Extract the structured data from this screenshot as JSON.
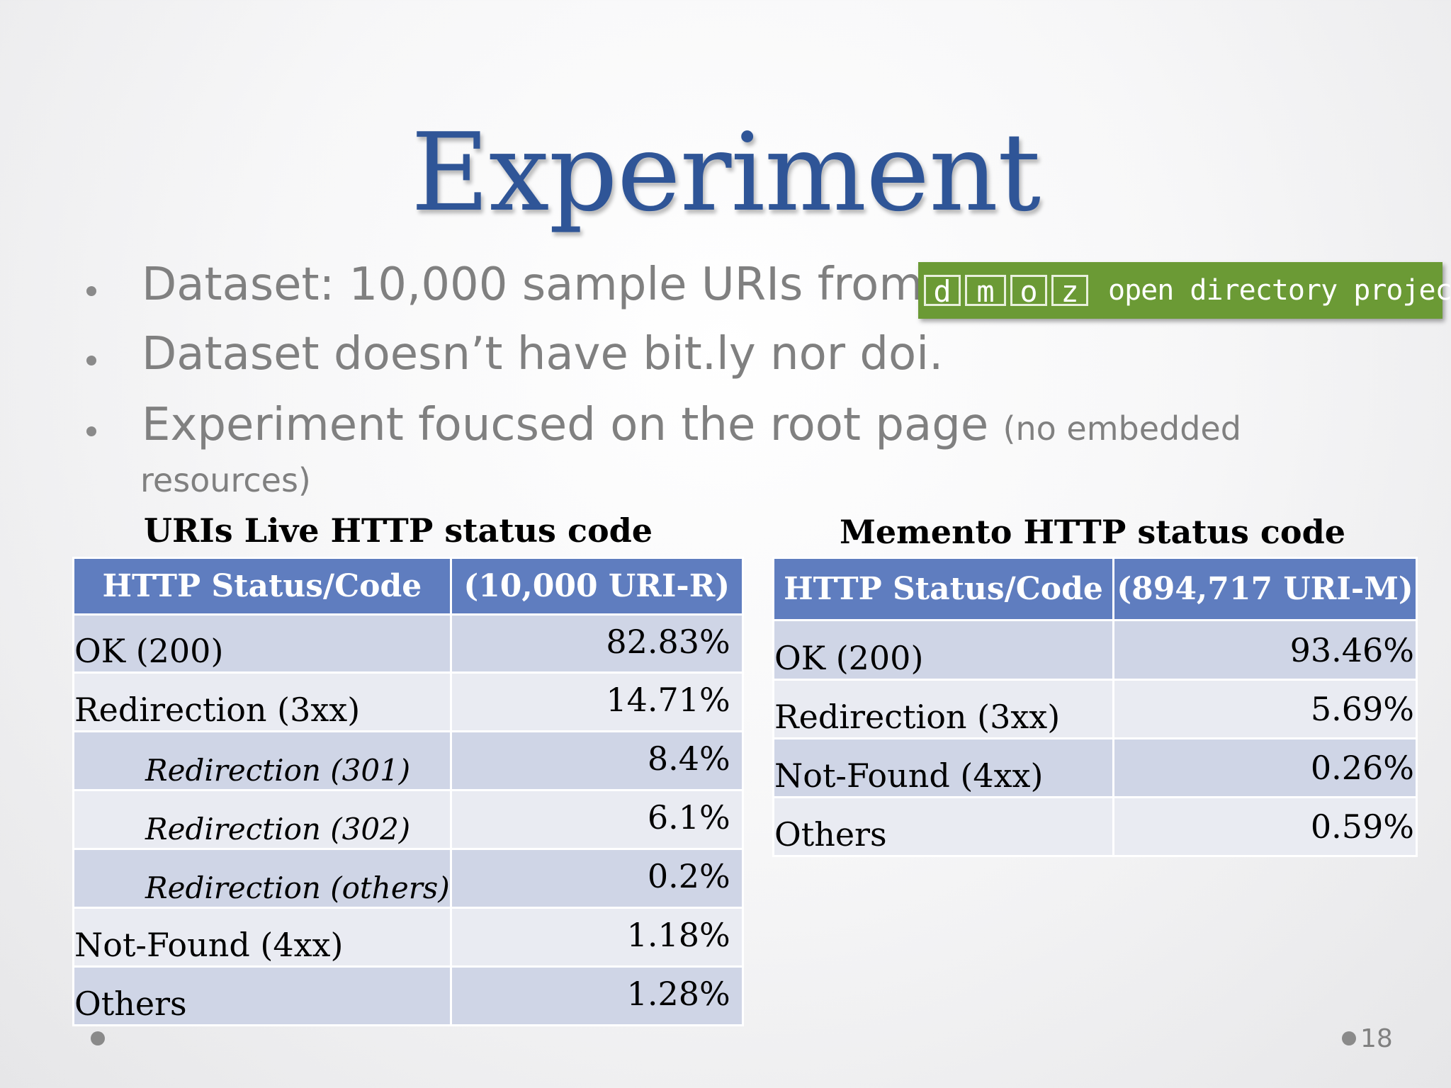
{
  "slide": {
    "title": "Experiment",
    "page_number": "18"
  },
  "bullets": [
    {
      "text": "Dataset: 10,000 sample URIs from"
    },
    {
      "text": "Dataset doesn’t have bit.ly nor doi."
    },
    {
      "text": "Experiment foucsed on the root page",
      "small": "(no embedded",
      "continuation": "resources)"
    }
  ],
  "dmoz_logo": {
    "letters": [
      "d",
      "m",
      "o",
      "z"
    ],
    "tagline": "open directory project",
    "color": "#6b9a35"
  },
  "left_table": {
    "title": "URIs Live HTTP status code",
    "headers": [
      "HTTP Status/Code",
      "(10,000 URI-R)"
    ],
    "rows": [
      {
        "label": "OK (200)",
        "value": "82.83%"
      },
      {
        "label": "Redirection (3xx)",
        "value": "14.71%"
      },
      {
        "label": "Redirection (301)",
        "value": "8.4%"
      },
      {
        "label": "Redirection (302)",
        "value": "6.1%"
      },
      {
        "label": "Redirection (others)",
        "value": "0.2%"
      },
      {
        "label": "Not-Found (4xx)",
        "value": "1.18%"
      },
      {
        "label": "Others",
        "value": "1.28%"
      }
    ]
  },
  "right_table": {
    "title": "Memento HTTP status code",
    "headers": [
      "HTTP Status/Code",
      "(894,717 URI-M)"
    ],
    "rows": [
      {
        "label": "OK (200)",
        "value": "93.46%"
      },
      {
        "label": "Redirection (3xx)",
        "value": "5.69%"
      },
      {
        "label": "Not-Found (4xx)",
        "value": "0.26%"
      },
      {
        "label": "Others",
        "value": "0.59%"
      }
    ]
  },
  "colors": {
    "title": "#2f5597",
    "header": "#5f7dbf",
    "row_odd": "#cfd5e6",
    "row_even": "#e9ebf2",
    "bullet_text": "#808080"
  }
}
